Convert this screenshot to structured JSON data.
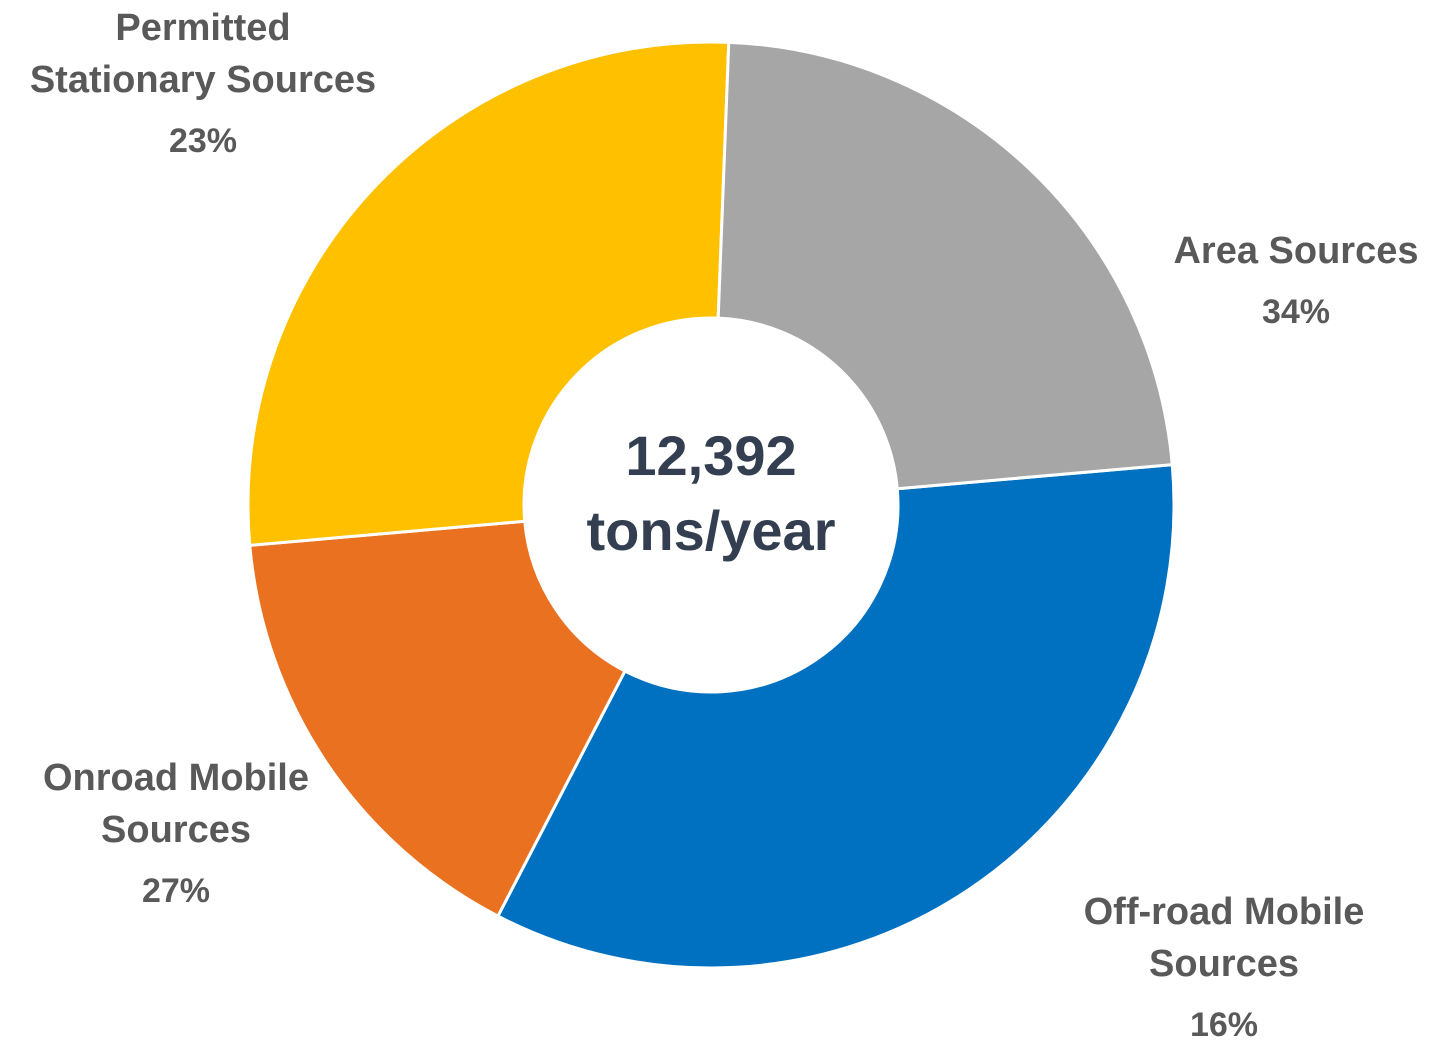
{
  "chart_data": {
    "type": "pie",
    "donut": true,
    "center_label": {
      "line1": "12,392",
      "line2": "tons/year"
    },
    "slices": [
      {
        "label_lines": [
          "Area Sources"
        ],
        "percent_label": "34%",
        "value": 34,
        "color": "#0070C0"
      },
      {
        "label_lines": [
          "Off-road Mobile",
          "Sources"
        ],
        "percent_label": "16%",
        "value": 16,
        "color": "#E97120"
      },
      {
        "label_lines": [
          "Onroad Mobile",
          "Sources"
        ],
        "percent_label": "27%",
        "value": 27,
        "color": "#FFC000"
      },
      {
        "label_lines": [
          "Permitted",
          "Stationary Sources"
        ],
        "percent_label": "23%",
        "value": 23,
        "color": "#A6A6A6"
      }
    ],
    "label_color": "#595959",
    "center_label_color": "#333F50"
  }
}
